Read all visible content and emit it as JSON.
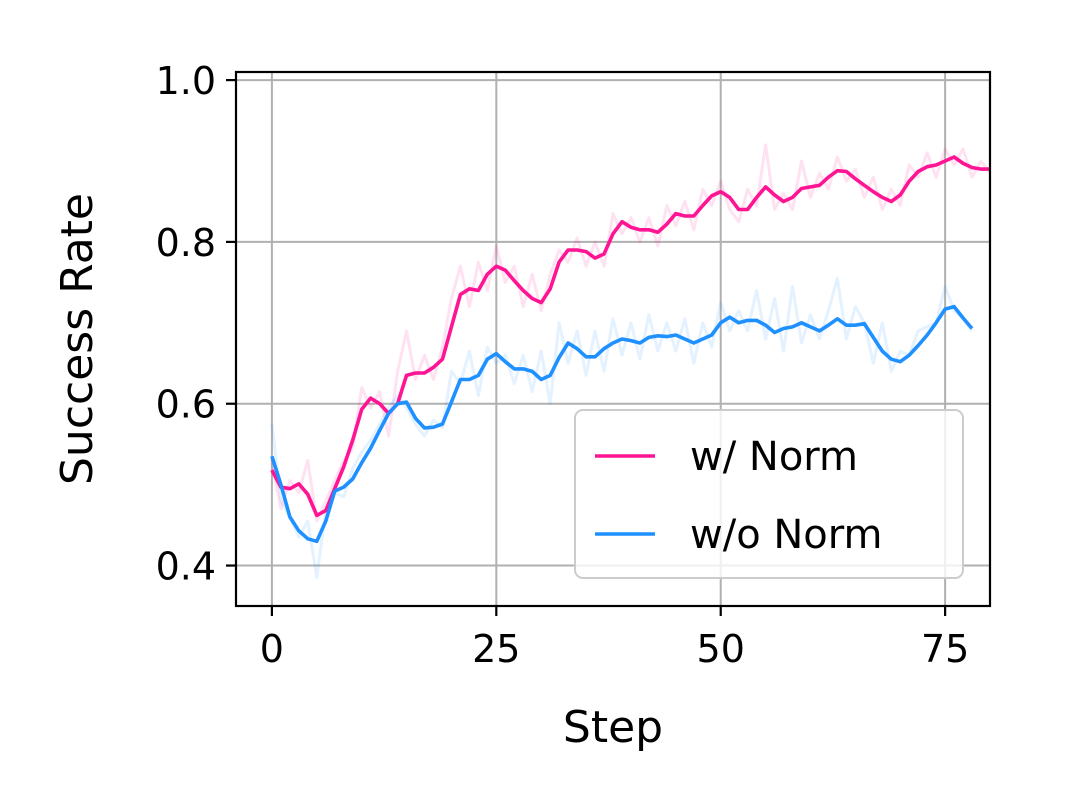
{
  "chart_data": {
    "type": "line",
    "title": "",
    "xlabel": "Step",
    "ylabel": "Success Rate",
    "xlim": [
      -4,
      80
    ],
    "ylim": [
      0.35,
      1.01
    ],
    "xticks": [
      0,
      25,
      50,
      75
    ],
    "yticks": [
      0.4,
      0.6,
      0.8,
      1.0
    ],
    "xtick_labels": [
      "0",
      "25",
      "50",
      "75"
    ],
    "ytick_labels": [
      "0.4",
      "0.6",
      "0.8",
      "1.0"
    ],
    "grid": true,
    "legend_position": "lower-right",
    "series": [
      {
        "name": "w/ Norm",
        "color": "#ff1493",
        "x": [
          0,
          1,
          2,
          3,
          4,
          5,
          6,
          7,
          8,
          9,
          10,
          11,
          12,
          13,
          14,
          15,
          16,
          17,
          18,
          19,
          20,
          21,
          22,
          23,
          24,
          25,
          26,
          27,
          28,
          29,
          30,
          31,
          32,
          33,
          34,
          35,
          36,
          37,
          38,
          39,
          40,
          41,
          42,
          43,
          44,
          45,
          46,
          47,
          48,
          49,
          50,
          51,
          52,
          53,
          54,
          55,
          56,
          57,
          58,
          59,
          60,
          61,
          62,
          63,
          64,
          65,
          66,
          67,
          68,
          69,
          70,
          71,
          72,
          73,
          74,
          75,
          76,
          77,
          78,
          79,
          80
        ],
        "y": [
          0.518,
          0.497,
          0.495,
          0.501,
          0.488,
          0.462,
          0.468,
          0.495,
          0.522,
          0.555,
          0.593,
          0.607,
          0.6,
          0.588,
          0.6,
          0.635,
          0.638,
          0.638,
          0.645,
          0.655,
          0.695,
          0.735,
          0.742,
          0.74,
          0.76,
          0.77,
          0.765,
          0.752,
          0.74,
          0.73,
          0.725,
          0.742,
          0.775,
          0.79,
          0.79,
          0.788,
          0.78,
          0.785,
          0.81,
          0.825,
          0.818,
          0.815,
          0.815,
          0.812,
          0.822,
          0.835,
          0.832,
          0.832,
          0.845,
          0.857,
          0.862,
          0.855,
          0.84,
          0.84,
          0.855,
          0.868,
          0.858,
          0.85,
          0.855,
          0.866,
          0.868,
          0.87,
          0.88,
          0.888,
          0.887,
          0.878,
          0.87,
          0.862,
          0.855,
          0.85,
          0.858,
          0.875,
          0.887,
          0.893,
          0.895,
          0.9,
          0.905,
          0.897,
          0.892,
          0.89,
          0.89
        ],
        "raw_y": [
          0.53,
          0.47,
          0.505,
          0.49,
          0.53,
          0.455,
          0.48,
          0.505,
          0.53,
          0.545,
          0.62,
          0.595,
          0.615,
          0.56,
          0.64,
          0.69,
          0.63,
          0.66,
          0.63,
          0.67,
          0.73,
          0.77,
          0.72,
          0.775,
          0.74,
          0.795,
          0.75,
          0.77,
          0.72,
          0.76,
          0.715,
          0.76,
          0.79,
          0.775,
          0.805,
          0.77,
          0.8,
          0.77,
          0.835,
          0.81,
          0.83,
          0.8,
          0.83,
          0.795,
          0.845,
          0.82,
          0.85,
          0.815,
          0.865,
          0.845,
          0.875,
          0.84,
          0.825,
          0.865,
          0.845,
          0.92,
          0.84,
          0.86,
          0.84,
          0.9,
          0.855,
          0.885,
          0.865,
          0.905,
          0.875,
          0.89,
          0.855,
          0.88,
          0.84,
          0.865,
          0.845,
          0.895,
          0.88,
          0.91,
          0.88,
          0.915,
          0.895,
          0.915,
          0.88,
          0.9,
          0.885
        ]
      },
      {
        "name": "w/o Norm",
        "color": "#1e90ff",
        "x": [
          0,
          1,
          2,
          3,
          4,
          5,
          6,
          7,
          8,
          9,
          10,
          11,
          12,
          13,
          14,
          15,
          16,
          17,
          18,
          19,
          20,
          21,
          22,
          23,
          24,
          25,
          26,
          27,
          28,
          29,
          30,
          31,
          32,
          33,
          34,
          35,
          36,
          37,
          38,
          39,
          40,
          41,
          42,
          43,
          44,
          45,
          46,
          47,
          48,
          49,
          50,
          51,
          52,
          53,
          54,
          55,
          56,
          57,
          58,
          59,
          60,
          61,
          62,
          63,
          64,
          65,
          66,
          67,
          68,
          69,
          70,
          71,
          72,
          73,
          74,
          75,
          76,
          77,
          78
        ],
        "y": [
          0.535,
          0.5,
          0.46,
          0.443,
          0.433,
          0.43,
          0.455,
          0.492,
          0.497,
          0.507,
          0.527,
          0.545,
          0.567,
          0.588,
          0.6,
          0.602,
          0.582,
          0.57,
          0.571,
          0.575,
          0.602,
          0.63,
          0.63,
          0.635,
          0.655,
          0.662,
          0.652,
          0.643,
          0.643,
          0.64,
          0.63,
          0.635,
          0.657,
          0.675,
          0.668,
          0.658,
          0.658,
          0.668,
          0.675,
          0.68,
          0.678,
          0.675,
          0.682,
          0.684,
          0.683,
          0.685,
          0.68,
          0.675,
          0.68,
          0.685,
          0.7,
          0.707,
          0.7,
          0.703,
          0.703,
          0.697,
          0.688,
          0.693,
          0.695,
          0.7,
          0.695,
          0.69,
          0.697,
          0.705,
          0.697,
          0.697,
          0.699,
          0.682,
          0.665,
          0.655,
          0.652,
          0.66,
          0.672,
          0.685,
          0.7,
          0.717,
          0.72,
          0.706,
          0.693
        ],
        "raw_y": [
          0.575,
          0.48,
          0.46,
          0.435,
          0.455,
          0.385,
          0.47,
          0.49,
          0.485,
          0.52,
          0.54,
          0.555,
          0.575,
          0.595,
          0.61,
          0.595,
          0.575,
          0.56,
          0.58,
          0.57,
          0.64,
          0.625,
          0.665,
          0.61,
          0.67,
          0.65,
          0.66,
          0.625,
          0.66,
          0.615,
          0.665,
          0.6,
          0.7,
          0.65,
          0.69,
          0.635,
          0.69,
          0.64,
          0.705,
          0.66,
          0.7,
          0.655,
          0.71,
          0.665,
          0.7,
          0.665,
          0.705,
          0.65,
          0.7,
          0.67,
          0.725,
          0.69,
          0.715,
          0.69,
          0.74,
          0.68,
          0.73,
          0.665,
          0.745,
          0.675,
          0.71,
          0.68,
          0.715,
          0.755,
          0.68,
          0.72,
          0.7,
          0.65,
          0.7,
          0.64,
          0.665,
          0.66,
          0.69,
          0.695,
          0.7,
          0.745,
          0.715,
          0.705,
          0.69
        ]
      }
    ]
  }
}
